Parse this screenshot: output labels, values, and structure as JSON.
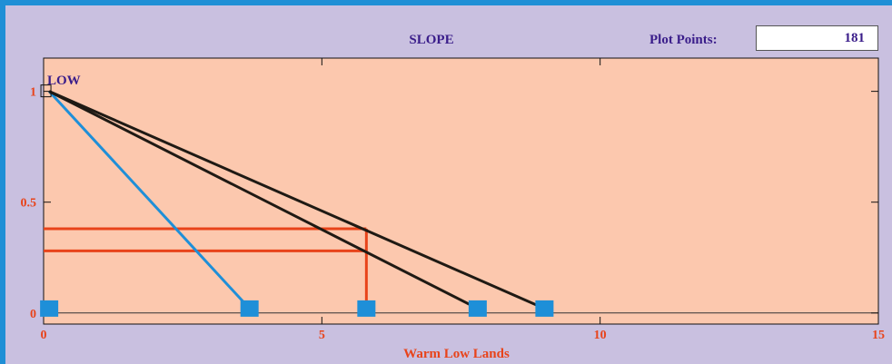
{
  "header": {
    "title": "SLOPE",
    "plot_points_label": "Plot Points:",
    "plot_points_value": "181"
  },
  "colors": {
    "frame": "#1f8fd6",
    "panel": "#c9c0e0",
    "plot_bg": "#fcc8ae",
    "title_text": "#3a1d8a",
    "axis_text": "#e8431a",
    "line_blue": "#1e8fd8",
    "line_dark": "#1f1a14",
    "line_red": "#e8431a",
    "marker": "#1e8fd8"
  },
  "chart_data": {
    "type": "line",
    "title": "",
    "xlabel": "Warm Low Lands",
    "ylabel": "",
    "xlim": [
      0,
      15
    ],
    "ylim": [
      -0.05,
      1.15
    ],
    "xticks": [
      0,
      5,
      10,
      15
    ],
    "yticks": [
      0,
      0.5,
      1
    ],
    "ytick_labels": [
      "0",
      "0.5",
      "1"
    ],
    "series_label": "LOW",
    "series": [
      {
        "color": "#1e8fd8",
        "points": [
          [
            0.1,
            1
          ],
          [
            3.7,
            0.02
          ]
        ]
      },
      {
        "color": "#1f1a14",
        "points": [
          [
            0.1,
            1
          ],
          [
            7.8,
            0.02
          ]
        ]
      },
      {
        "color": "#1f1a14",
        "points": [
          [
            0.1,
            1
          ],
          [
            9.0,
            0.02
          ]
        ]
      }
    ],
    "markers_x": [
      0.1,
      3.7,
      5.8,
      7.8,
      9.0
    ],
    "marker_y": 0.02,
    "open_marker": [
      0.05,
      1
    ],
    "input_x": 5.8,
    "cut_levels": [
      0.38,
      0.28
    ]
  }
}
